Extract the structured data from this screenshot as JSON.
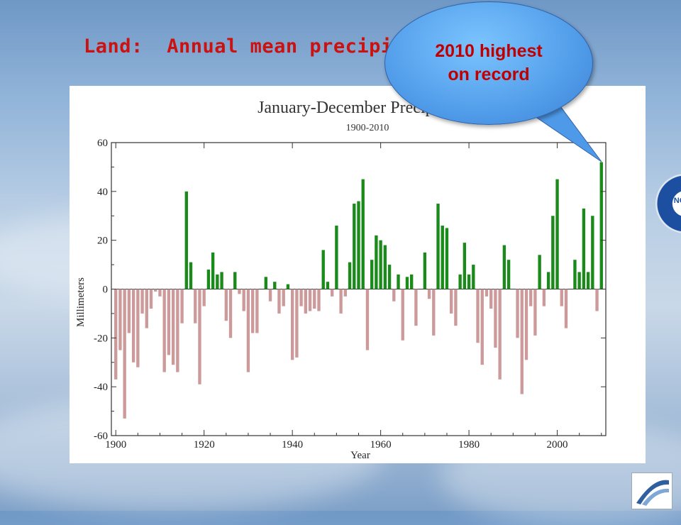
{
  "slide": {
    "title": "Land:  Annual mean precipitation anomalies",
    "callout": "2010 highest on record"
  },
  "logos": {
    "noaa": "NOAA"
  },
  "colors": {
    "positive": "#1a8a1a",
    "negative": "#cc9a9a",
    "title": "#cc1111",
    "bubble": "#4f9ae8"
  },
  "chart_data": {
    "type": "bar",
    "title": "January-December Precipitation",
    "subtitle": "1900-2010",
    "xlabel": "Year",
    "ylabel": "Millimeters",
    "xlim": [
      1899,
      2011
    ],
    "ylim": [
      -60,
      60
    ],
    "xticks": [
      1900,
      1920,
      1940,
      1960,
      1980,
      2000
    ],
    "yticks": [
      -60,
      -40,
      -20,
      0,
      20,
      40,
      60
    ],
    "years": [
      1900,
      1901,
      1902,
      1903,
      1904,
      1905,
      1906,
      1907,
      1908,
      1909,
      1910,
      1911,
      1912,
      1913,
      1914,
      1915,
      1916,
      1917,
      1918,
      1919,
      1920,
      1921,
      1922,
      1923,
      1924,
      1925,
      1926,
      1927,
      1928,
      1929,
      1930,
      1931,
      1932,
      1933,
      1934,
      1935,
      1936,
      1937,
      1938,
      1939,
      1940,
      1941,
      1942,
      1943,
      1944,
      1945,
      1946,
      1947,
      1948,
      1949,
      1950,
      1951,
      1952,
      1953,
      1954,
      1955,
      1956,
      1957,
      1958,
      1959,
      1960,
      1961,
      1962,
      1963,
      1964,
      1965,
      1966,
      1967,
      1968,
      1969,
      1970,
      1971,
      1972,
      1973,
      1974,
      1975,
      1976,
      1977,
      1978,
      1979,
      1980,
      1981,
      1982,
      1983,
      1984,
      1985,
      1986,
      1987,
      1988,
      1989,
      1990,
      1991,
      1992,
      1993,
      1994,
      1995,
      1996,
      1997,
      1998,
      1999,
      2000,
      2001,
      2002,
      2003,
      2004,
      2005,
      2006,
      2007,
      2008,
      2009,
      2010
    ],
    "values": [
      -37,
      -25,
      -53,
      -18,
      -30,
      -32,
      -10,
      -16,
      -8,
      -1,
      -3,
      -34,
      -27,
      -31,
      -34,
      -14,
      40,
      11,
      -14,
      -39,
      -7,
      8,
      15,
      6,
      7,
      -13,
      -20,
      7,
      -2,
      -9,
      -34,
      -18,
      -18,
      0,
      5,
      -5,
      3,
      -10,
      -7,
      2,
      -29,
      -28,
      -7,
      -10,
      -9,
      -8,
      -9,
      16,
      3,
      -3,
      26,
      -10,
      -3,
      11,
      35,
      36,
      45,
      -25,
      12,
      22,
      20,
      18,
      10,
      -5,
      6,
      -21,
      5,
      6,
      -15,
      0,
      15,
      -4,
      -19,
      35,
      26,
      25,
      -10,
      -15,
      6,
      19,
      6,
      10,
      -22,
      -31,
      -3,
      -8,
      -24,
      -37,
      18,
      12,
      0,
      -20,
      -43,
      -29,
      -7,
      -19,
      14,
      -7,
      7,
      30,
      45,
      -7,
      -16,
      0,
      12,
      7,
      33,
      7,
      30,
      -9,
      52
    ]
  }
}
